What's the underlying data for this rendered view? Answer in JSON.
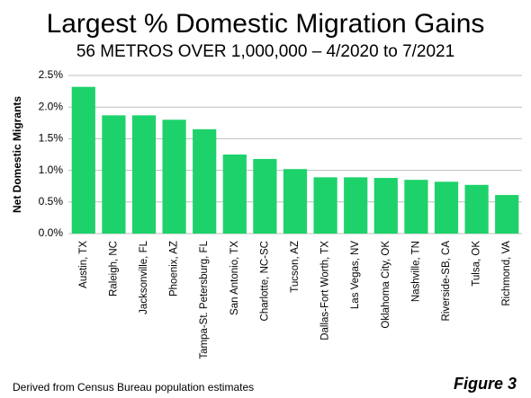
{
  "chart_data": {
    "type": "bar",
    "title": "Largest % Domestic Migration Gains",
    "subtitle": "56 METROS OVER 1,000,000 – 4/2020 to 7/2021",
    "y_label": "Net Domestic Migrants",
    "source": "Derived from Census Bureau population estimates",
    "figure_label": "Figure 3",
    "categories": [
      "Austin, TX",
      "Raleigh, NC",
      "Jacksonville, FL",
      "Phoenix, AZ",
      "Tampa-St. Petersburg, FL",
      "San Antonio, TX",
      "Charlotte, NC-SC",
      "Tucson, AZ",
      "Dallas-Fort Worth, TX",
      "Las Vegas, NV",
      "Oklahoma City, OK",
      "Nashville, TN",
      "Riverside-SB, CA",
      "Tulsa, OK",
      "Richmond, VA"
    ],
    "values": [
      2.32,
      1.87,
      1.87,
      1.8,
      1.65,
      1.25,
      1.18,
      1.02,
      0.89,
      0.89,
      0.88,
      0.85,
      0.82,
      0.77,
      0.61
    ],
    "color": "#1ed26b",
    "ylim": [
      0,
      2.5
    ],
    "yticks": [
      {
        "value": 0,
        "label": "0.0%"
      },
      {
        "value": 0.5,
        "label": "0.5%"
      },
      {
        "value": 1,
        "label": "1.0%"
      },
      {
        "value": 1.5,
        "label": "1.5%"
      },
      {
        "value": 2,
        "label": "2.0%"
      },
      {
        "value": 2.5,
        "label": "2.5%"
      }
    ],
    "grid": true
  }
}
